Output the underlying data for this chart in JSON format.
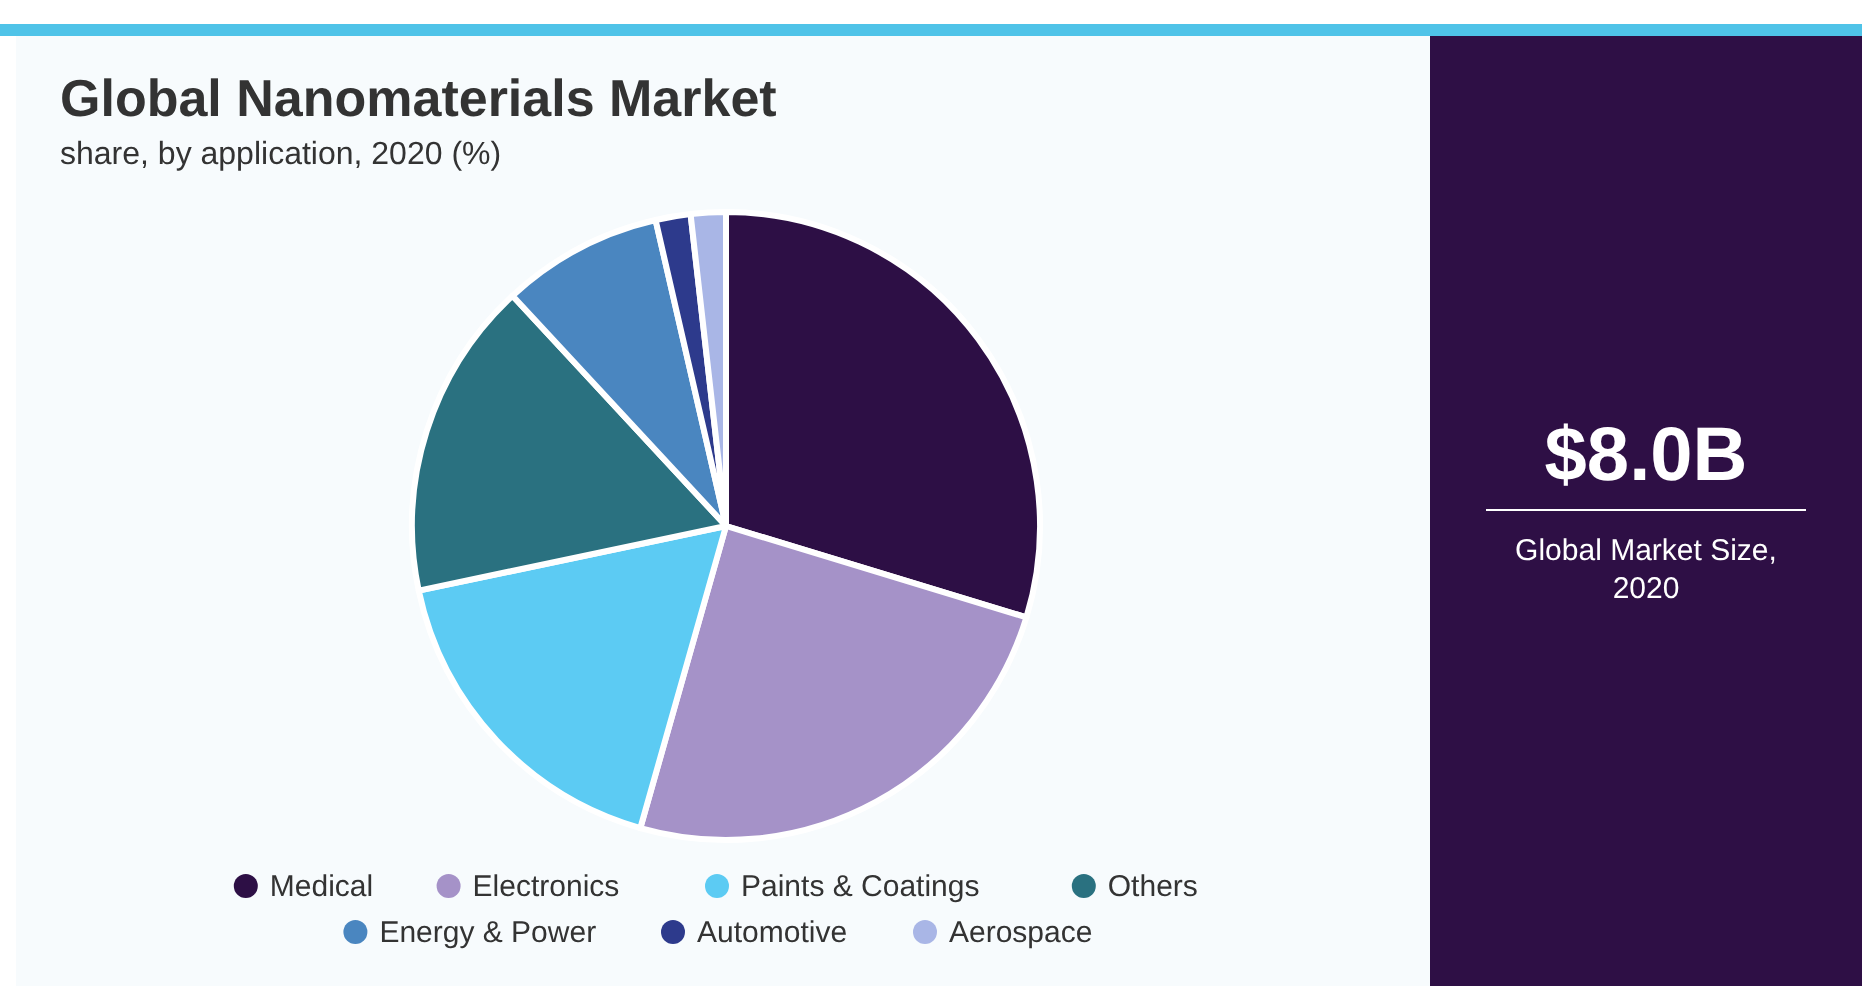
{
  "chart_data": {
    "type": "pie",
    "title": "Global Nanomaterials Market",
    "subtitle": "share, by application, 2020 (%)",
    "categories": [
      "Medical",
      "Electronics",
      "Paints & Coatings",
      "Others",
      "Energy & Power",
      "Automotive",
      "Aerospace"
    ],
    "values": [
      29.7,
      24.7,
      17.3,
      16.4,
      8.3,
      1.8,
      1.8
    ],
    "colors": [
      "#2d0f45",
      "#a592c8",
      "#5ccbf3",
      "#2a7180",
      "#4a86c0",
      "#2d3a8c",
      "#a9b6e6"
    ],
    "legend": "bottom",
    "annotations": [
      "$8.0B",
      "Global Market Size, 2020"
    ]
  }
}
